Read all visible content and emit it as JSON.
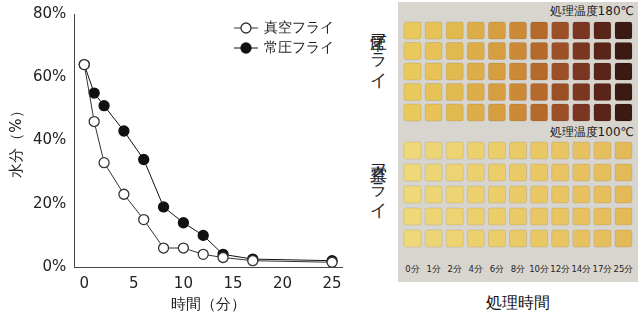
{
  "chart_data": {
    "type": "line",
    "x_label": "時間（分）",
    "y_label": "水分（%）",
    "x": [
      0,
      1,
      2,
      4,
      6,
      8,
      10,
      12,
      14,
      17,
      25
    ],
    "series": [
      {
        "name": "真空フライ",
        "color": "#333333",
        "marker": "open circle",
        "values": [
          64,
          46,
          33,
          23,
          15,
          6,
          6,
          4,
          3,
          2,
          1.5
        ]
      },
      {
        "name": "常圧フライ",
        "color": "#111111",
        "marker": "filled circle",
        "values": [
          64,
          55,
          51,
          43,
          34,
          19,
          14,
          10,
          4,
          2.5,
          2
        ]
      }
    ],
    "xlim": [
      -1,
      26
    ],
    "xticks": [
      0,
      5,
      10,
      15,
      20,
      25
    ],
    "ylim": [
      0,
      80
    ],
    "yticks": [
      {
        "value": 0,
        "label": "0%"
      },
      {
        "value": 20,
        "label": "20%"
      },
      {
        "value": 40,
        "label": "40%"
      },
      {
        "value": 60,
        "label": "60%"
      },
      {
        "value": 80,
        "label": "80%"
      }
    ],
    "grid": false,
    "legend": "upper right"
  },
  "photo": {
    "axis_label": "処理時間",
    "times": [
      "0分",
      "1分",
      "2分",
      "4分",
      "6分",
      "8分",
      "10分",
      "12分",
      "14分",
      "17分",
      "25分"
    ],
    "groups": [
      {
        "name": "常圧フライ",
        "temperature": "処理温度180℃",
        "colors": [
          "#e9c95e",
          "#e6c257",
          "#e2b94f",
          "#ddae47",
          "#d69e3f",
          "#cc8a37",
          "#b56a2c",
          "#9c5028",
          "#7a3620",
          "#5a2518",
          "#3a1a12"
        ]
      },
      {
        "name": "真空フライ",
        "temperature": "処理温度100℃",
        "colors": [
          "#efd878",
          "#eed574",
          "#edd372",
          "#ecd06e",
          "#ebcd6a",
          "#eaca67",
          "#e9c764",
          "#e8c462",
          "#e7c160",
          "#e6be5d",
          "#e4ba59"
        ]
      }
    ]
  }
}
